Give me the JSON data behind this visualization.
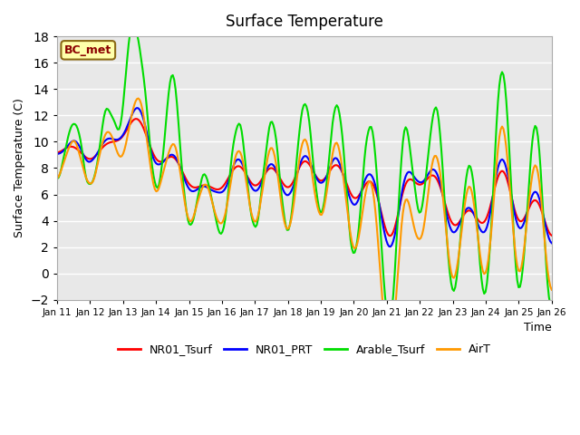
{
  "title": "Surface Temperature",
  "ylabel": "Surface Temperature (C)",
  "xlabel": "Time",
  "ylim": [
    -2,
    18
  ],
  "yticks": [
    -2,
    0,
    2,
    4,
    6,
    8,
    10,
    12,
    14,
    16,
    18
  ],
  "xtick_labels": [
    "Jan 11",
    "Jan 12",
    "Jan 13",
    "Jan 14",
    "Jan 15",
    "Jan 16",
    "Jan 17",
    "Jan 18",
    "Jan 19",
    "Jan 20",
    "Jan 21",
    "Jan 22",
    "Jan 23",
    "Jan 24",
    "Jan 25",
    "Jan 26"
  ],
  "label_bc_met": "BC_met",
  "series_colors": {
    "NR01_Tsurf": "#ff0000",
    "NR01_PRT": "#0000ff",
    "Arable_Tsurf": "#00dd00",
    "AirT": "#ff9900"
  },
  "bg_color": "#e8e8e8",
  "fig_bg": "#ffffff",
  "n_points": 360
}
